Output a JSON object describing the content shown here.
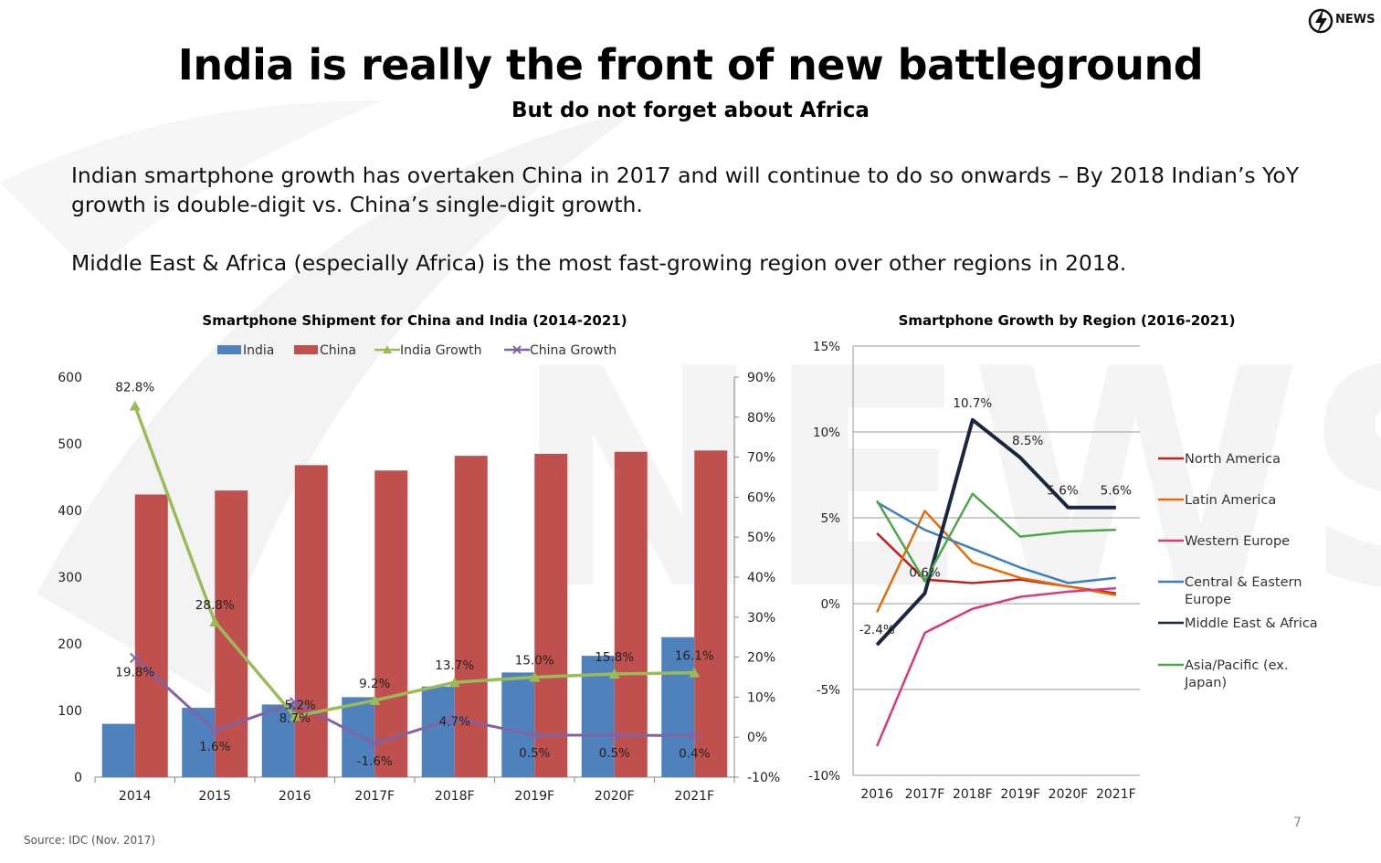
{
  "slide": {
    "title": "India is really the front of new battleground",
    "subtitle": "But do not forget about Africa",
    "paragraph1": "Indian smartphone growth has overtaken China in 2017 and will continue to do so onwards – By 2018 Indian’s YoY growth is double-digit vs. China’s single-digit growth.",
    "paragraph2": "Middle East & Africa (especially Africa) is the most fast-growing region over other regions in 2018.",
    "source": "Source: IDC (Nov. 2017)",
    "page_number": "7",
    "logo_text": "NEWS"
  },
  "chart_data": [
    {
      "type": "bar",
      "title": "Smartphone Shipment for China and India (2014-2021)",
      "categories": [
        "2014",
        "2015",
        "2016",
        "2017F",
        "2018F",
        "2019F",
        "2020F",
        "2021F"
      ],
      "ylim": [
        0,
        600
      ],
      "yticks": [
        "0",
        "100",
        "200",
        "300",
        "400",
        "500",
        "600"
      ],
      "y2lim": [
        -10,
        90
      ],
      "y2ticks": [
        "-10%",
        "0%",
        "10%",
        "20%",
        "30%",
        "40%",
        "50%",
        "60%",
        "70%",
        "80%",
        "90%"
      ],
      "legend_position": "top",
      "series": [
        {
          "name": "India",
          "kind": "bar",
          "color": "#4F81BD",
          "values": [
            80,
            104,
            109,
            120,
            136,
            157,
            182,
            210
          ]
        },
        {
          "name": "China",
          "kind": "bar",
          "color": "#C0504D",
          "values": [
            424,
            430,
            468,
            460,
            482,
            485,
            488,
            490
          ]
        },
        {
          "name": "India Growth",
          "kind": "line",
          "axis": "right",
          "color": "#9BBB59",
          "values": [
            82.8,
            28.8,
            5.2,
            9.2,
            13.7,
            15.0,
            15.8,
            16.1
          ],
          "labels": [
            "82.8%",
            "28.8%",
            "5.2%",
            "9.2%",
            "13.7%",
            "15.0%",
            "15.8%",
            "16.1%"
          ]
        },
        {
          "name": "China Growth",
          "kind": "line",
          "axis": "right",
          "color": "#8064A2",
          "values": [
            19.8,
            1.6,
            8.7,
            -1.6,
            4.7,
            0.5,
            0.5,
            0.4
          ],
          "labels": [
            "19.8%",
            "1.6%",
            "8.7%",
            "-1.6%",
            "4.7%",
            "0.5%",
            "0.5%",
            "0.4%"
          ]
        }
      ]
    },
    {
      "type": "line",
      "title": "Smartphone Growth by Region (2016-2021)",
      "categories": [
        "2016",
        "2017F",
        "2018F",
        "2019F",
        "2020F",
        "2021F"
      ],
      "ylim": [
        -10,
        15
      ],
      "yticks": [
        "-10%",
        "-5%",
        "0%",
        "5%",
        "10%",
        "15%"
      ],
      "legend_position": "right",
      "series": [
        {
          "name": "North America",
          "color": "#C0211C",
          "width": 2.5,
          "values": [
            4.1,
            1.4,
            1.2,
            1.4,
            1.0,
            0.6
          ]
        },
        {
          "name": "Latin America",
          "color": "#E46C0A",
          "width": 2.5,
          "values": [
            -0.5,
            5.4,
            2.4,
            1.5,
            1.0,
            0.5
          ]
        },
        {
          "name": "Western Europe",
          "color": "#D63C7C",
          "width": 2.5,
          "values": [
            -8.3,
            -1.7,
            -0.3,
            0.4,
            0.7,
            0.9
          ]
        },
        {
          "name": "Central & Eastern Europe",
          "legend_lines": [
            "Central & Eastern",
            "Europe"
          ],
          "color": "#3C7EC0",
          "width": 2.5,
          "values": [
            5.9,
            4.3,
            3.2,
            2.1,
            1.2,
            1.5
          ]
        },
        {
          "name": "Middle East & Africa",
          "color": "#1A2740",
          "width": 4,
          "values": [
            -2.4,
            0.6,
            10.7,
            8.5,
            5.6,
            5.6
          ],
          "labels": [
            "-2.4%",
            "0.6%",
            "10.7%",
            "8.5%",
            "5.6%",
            "5.6%"
          ]
        },
        {
          "name": "Asia/Pacific (ex. Japan)",
          "legend_lines": [
            "Asia/Pacific (ex.",
            "Japan)"
          ],
          "color": "#4EA64A",
          "width": 2.5,
          "values": [
            6.0,
            1.3,
            6.4,
            3.9,
            4.2,
            4.3
          ]
        }
      ]
    }
  ]
}
